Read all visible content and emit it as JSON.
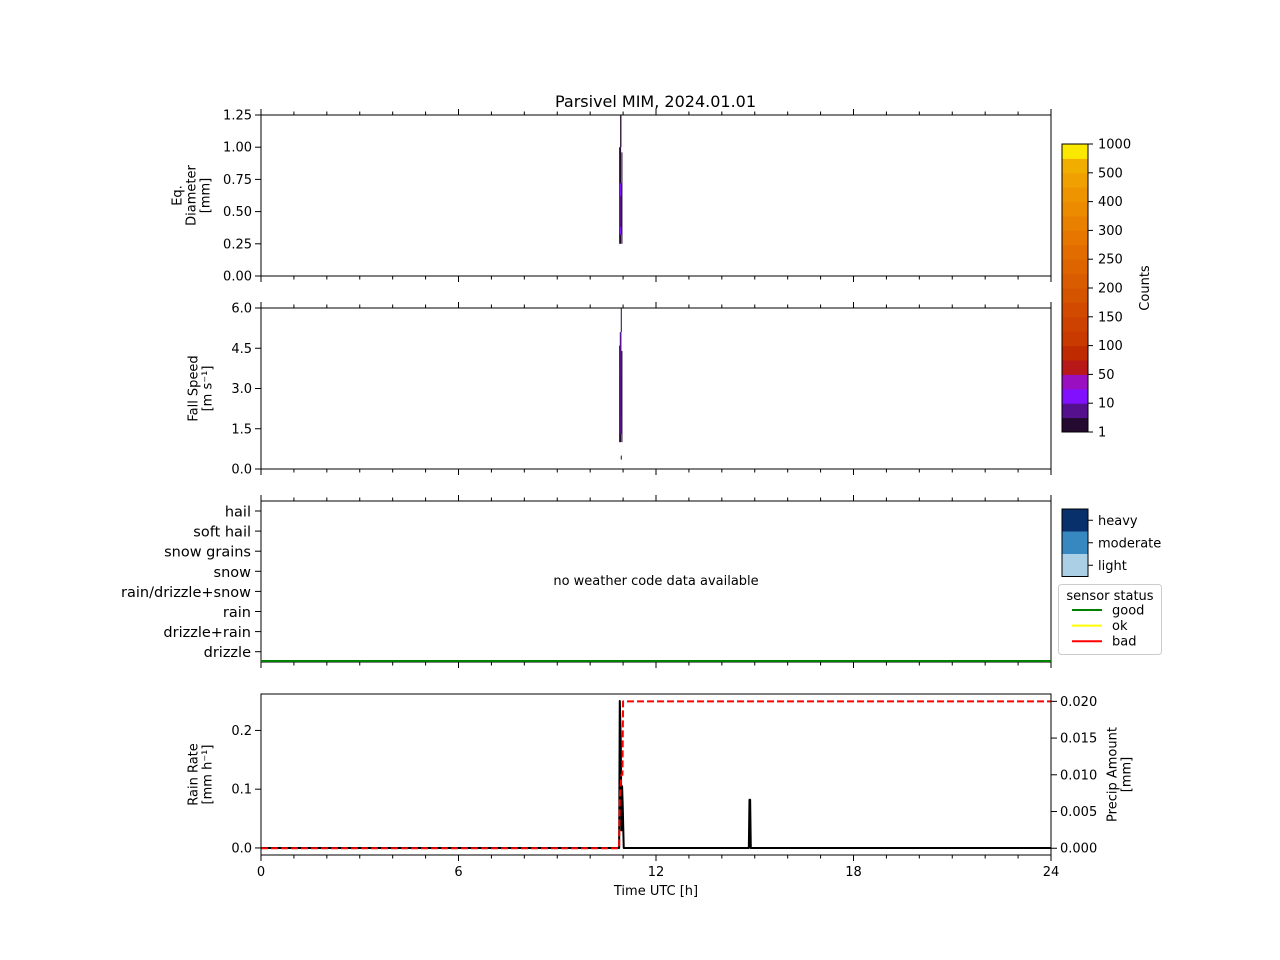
{
  "title": "Parsivel MIM, 2024.01.01",
  "chart_data": [
    {
      "type": "heatmap",
      "panel": "diameter",
      "ylabel_lines": [
        "Eq.",
        "Diameter",
        "[mm]"
      ],
      "xlim": [
        0,
        24
      ],
      "ylim": [
        0,
        1.25
      ],
      "yticks": [
        0,
        0.25,
        0.5,
        0.75,
        1.0,
        1.25
      ],
      "ytick_labels": [
        "0.00",
        "0.25",
        "0.50",
        "0.75",
        "1.00",
        "1.25"
      ],
      "cells": [
        {
          "t0": 10.88,
          "t1": 10.94,
          "y0": 0.25,
          "y1": 1.0,
          "count": 1
        },
        {
          "t0": 10.9,
          "t1": 10.96,
          "y0": 0.32,
          "y1": 0.72,
          "count": 10
        },
        {
          "t0": 10.9,
          "t1": 10.95,
          "y0": 0.38,
          "y1": 0.62,
          "count": 8
        },
        {
          "t0": 10.91,
          "t1": 10.95,
          "y0": 1.0,
          "y1": 1.25,
          "count": 1
        },
        {
          "t0": 10.95,
          "t1": 10.98,
          "y0": 0.25,
          "y1": 0.96,
          "count": 1
        }
      ],
      "grid": false
    },
    {
      "type": "heatmap",
      "panel": "fall_speed",
      "ylabel_lines": [
        "Fall Speed",
        "[m s⁻¹]"
      ],
      "xlim": [
        0,
        24
      ],
      "ylim": [
        0,
        6.0
      ],
      "yticks": [
        0,
        1.5,
        3.0,
        4.5,
        6.0
      ],
      "ytick_labels": [
        "0.0",
        "1.5",
        "3.0",
        "4.5",
        "6.0"
      ],
      "cells": [
        {
          "t0": 10.88,
          "t1": 10.94,
          "y0": 1.0,
          "y1": 4.6,
          "count": 1
        },
        {
          "t0": 10.9,
          "t1": 10.95,
          "y0": 1.3,
          "y1": 5.1,
          "count": 3
        },
        {
          "t0": 10.91,
          "t1": 10.95,
          "y0": 2.0,
          "y1": 3.5,
          "count": 8
        },
        {
          "t0": 10.93,
          "t1": 10.95,
          "y0": 5.1,
          "y1": 6.0,
          "count": 1
        },
        {
          "t0": 10.95,
          "t1": 10.98,
          "y0": 1.0,
          "y1": 4.4,
          "count": 1
        },
        {
          "t0": 10.93,
          "t1": 10.96,
          "y0": 0.35,
          "y1": 0.5,
          "count": 1
        }
      ],
      "grid": false
    },
    {
      "type": "line",
      "panel": "weather_code",
      "categories": [
        "drizzle",
        "drizzle+rain",
        "rain",
        "rain/drizzle+snow",
        "snow",
        "snow grains",
        "soft hail",
        "hail"
      ],
      "annotation": "no weather code data available",
      "xlim": [
        0,
        24
      ],
      "series": [
        {
          "name": "good",
          "color": "#008000",
          "x": [
            0,
            24
          ],
          "y": [
            0,
            0
          ]
        }
      ]
    },
    {
      "type": "line",
      "panel": "rain",
      "ylabel_lines": [
        "Rain Rate",
        "[mm h⁻¹]"
      ],
      "ylabel2_lines": [
        "Precip Amount",
        "[mm]"
      ],
      "xlabel": "Time UTC [h]",
      "xlim": [
        0,
        24
      ],
      "xticks": [
        0,
        6,
        12,
        18,
        24
      ],
      "ylim": [
        -0.012,
        0.262
      ],
      "yticks": [
        0,
        0.1,
        0.2
      ],
      "ytick_labels": [
        "0.0",
        "0.1",
        "0.2"
      ],
      "y2lim": [
        -0.00092,
        0.021
      ],
      "y2ticks": [
        0,
        0.005,
        0.01,
        0.015,
        0.02
      ],
      "y2tick_labels": [
        "0.000",
        "0.005",
        "0.010",
        "0.015",
        "0.020"
      ],
      "series": [
        {
          "color": "#000000",
          "axis": "left",
          "x": [
            0,
            10.88,
            10.9,
            10.93,
            10.95,
            10.97,
            10.99,
            11.02,
            11.05,
            14.82,
            14.84,
            14.86,
            14.88,
            24
          ],
          "y": [
            0,
            0,
            0.25,
            0.18,
            0.03,
            0.105,
            0.07,
            0.0,
            0,
            0,
            0.082,
            0.082,
            0,
            0
          ]
        },
        {
          "color": "#ff0000",
          "axis": "right",
          "style": "dashed",
          "x": [
            0,
            10.88,
            10.9,
            10.95,
            10.98,
            11.0,
            24
          ],
          "y": [
            0,
            0,
            0.007,
            0.01,
            0.01,
            0.02,
            0.02
          ]
        }
      ]
    }
  ],
  "colorbar": {
    "label": "Counts",
    "tick_labels": [
      "1",
      "10",
      "50",
      "100",
      "150",
      "200",
      "250",
      "300",
      "400",
      "500",
      "1000"
    ],
    "colors": [
      "#230a2e",
      "#55108e",
      "#8010fe",
      "#9a10c0",
      "#b81818",
      "#c02a00",
      "#c83a00",
      "#cd4200",
      "#d14a00",
      "#d55400",
      "#da5c00",
      "#de6400",
      "#e26c00",
      "#e67600",
      "#e98000",
      "#ec8a00",
      "#ee9400",
      "#f0a000",
      "#f1ae00",
      "#fbe800"
    ]
  },
  "intensity_legend": {
    "items": [
      {
        "label": "heavy",
        "color": "#08306b"
      },
      {
        "label": "moderate",
        "color": "#3787c0"
      },
      {
        "label": "light",
        "color": "#abd0e6"
      }
    ]
  },
  "status_legend": {
    "title": "sensor status",
    "items": [
      {
        "label": "good",
        "color": "#008000"
      },
      {
        "label": "ok",
        "color": "#ffff00"
      },
      {
        "label": "bad",
        "color": "#ff0000"
      }
    ]
  }
}
